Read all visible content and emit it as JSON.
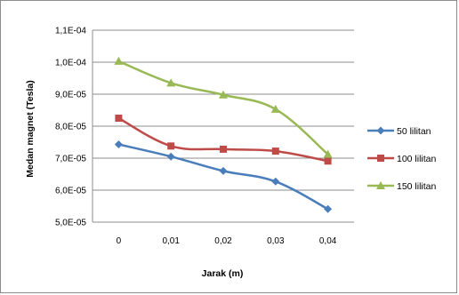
{
  "chart_data": {
    "type": "line",
    "title": "",
    "xlabel": "Jarak (m)",
    "ylabel": "Medan magnet (Tesla)",
    "x": [
      "0",
      "0,01",
      "0,02",
      "0,03",
      "0,04"
    ],
    "x_values": [
      0,
      0.01,
      0.02,
      0.03,
      0.04
    ],
    "ylim": [
      5e-05,
      0.00011
    ],
    "y_ticks": [
      5e-05,
      6e-05,
      7e-05,
      8e-05,
      9e-05,
      0.0001,
      0.00011
    ],
    "y_tick_labels": [
      "5,0E-05",
      "6,0E-05",
      "7,0E-05",
      "8,0E-05",
      "9,0E-05",
      "1,0E-04",
      "1,1E-04"
    ],
    "grid": "horizontal",
    "legend_position": "right",
    "series": [
      {
        "name": "50 lilitan",
        "color": "#4a7ebb",
        "marker": "diamond",
        "values": [
          7.43e-05,
          7.05e-05,
          6.6e-05,
          6.27e-05,
          5.41e-05
        ]
      },
      {
        "name": "100 lilitan",
        "color": "#be4b48",
        "marker": "square",
        "values": [
          8.25e-05,
          7.38e-05,
          7.28e-05,
          7.22e-05,
          6.91e-05
        ]
      },
      {
        "name": "150 lilitan",
        "color": "#98b954",
        "marker": "triangle",
        "values": [
          0.0001003,
          9.35e-05,
          8.98e-05,
          8.53e-05,
          7.12e-05
        ]
      }
    ]
  }
}
